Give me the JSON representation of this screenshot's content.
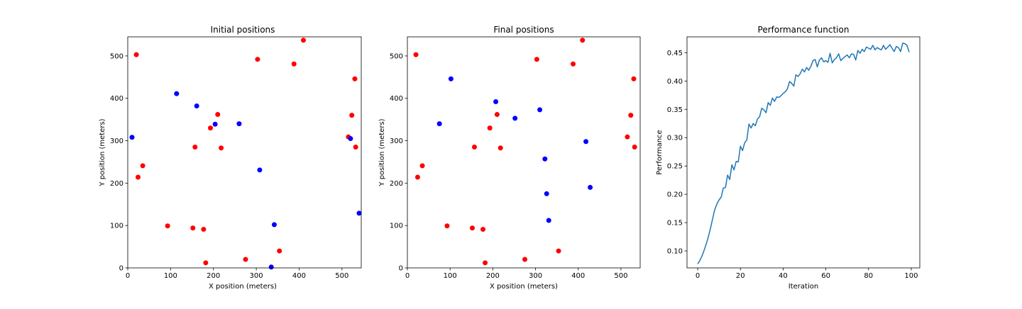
{
  "colors": {
    "red": "#ff0000",
    "blue": "#0000ff",
    "line": "#1f77b4"
  },
  "chart_data": [
    {
      "type": "scatter",
      "title": "Initial positions",
      "xlabel": "X position (meters)",
      "ylabel": "Y position (meters)",
      "xlim": [
        0,
        545
      ],
      "ylim": [
        0,
        545
      ],
      "xticks": [
        0,
        100,
        200,
        300,
        400,
        500
      ],
      "yticks": [
        0,
        100,
        200,
        300,
        400,
        500
      ],
      "grid": false,
      "series": [
        {
          "color": "red",
          "points": [
            [
              20,
              503
            ],
            [
              410,
              537
            ],
            [
              303,
              492
            ],
            [
              388,
              481
            ],
            [
              530,
              446
            ],
            [
              210,
              362
            ],
            [
              523,
              360
            ],
            [
              193,
              330
            ],
            [
              515,
              309
            ],
            [
              157,
              285
            ],
            [
              218,
              283
            ],
            [
              532,
              285
            ],
            [
              35,
              241
            ],
            [
              24,
              214
            ],
            [
              93,
              99
            ],
            [
              152,
              94
            ],
            [
              177,
              91
            ],
            [
              275,
              20
            ],
            [
              354,
              40
            ],
            [
              182,
              12
            ]
          ]
        },
        {
          "color": "blue",
          "points": [
            [
              114,
              411
            ],
            [
              161,
              382
            ],
            [
              204,
              339
            ],
            [
              260,
              340
            ],
            [
              10,
              308
            ],
            [
              520,
              305
            ],
            [
              308,
              231
            ],
            [
              540,
              129
            ],
            [
              342,
              102
            ],
            [
              335,
              2
            ]
          ]
        }
      ]
    },
    {
      "type": "scatter",
      "title": "Final positions",
      "xlabel": "X position (meters)",
      "ylabel": "Y position (meters)",
      "xlim": [
        0,
        545
      ],
      "ylim": [
        0,
        545
      ],
      "xticks": [
        0,
        100,
        200,
        300,
        400,
        500
      ],
      "yticks": [
        0,
        100,
        200,
        300,
        400,
        500
      ],
      "grid": false,
      "series": [
        {
          "color": "red",
          "points": [
            [
              20,
              503
            ],
            [
              410,
              537
            ],
            [
              303,
              492
            ],
            [
              388,
              481
            ],
            [
              530,
              446
            ],
            [
              210,
              362
            ],
            [
              523,
              360
            ],
            [
              193,
              330
            ],
            [
              515,
              309
            ],
            [
              157,
              285
            ],
            [
              218,
              283
            ],
            [
              532,
              285
            ],
            [
              35,
              241
            ],
            [
              24,
              214
            ],
            [
              93,
              99
            ],
            [
              152,
              94
            ],
            [
              177,
              91
            ],
            [
              275,
              20
            ],
            [
              354,
              40
            ],
            [
              182,
              12
            ]
          ]
        },
        {
          "color": "blue",
          "points": [
            [
              102,
              446
            ],
            [
              207,
              392
            ],
            [
              310,
              373
            ],
            [
              252,
              353
            ],
            [
              75,
              340
            ],
            [
              418,
              298
            ],
            [
              322,
              257
            ],
            [
              428,
              190
            ],
            [
              326,
              175
            ],
            [
              331,
              112
            ]
          ]
        }
      ]
    },
    {
      "type": "line",
      "title": "Performance function",
      "xlabel": "Iteration",
      "ylabel": "Performance",
      "xlim": [
        -5,
        104
      ],
      "ylim": [
        0.07,
        0.478
      ],
      "xticks": [
        0,
        20,
        40,
        60,
        80,
        100
      ],
      "yticks": [
        0.1,
        0.15,
        0.2,
        0.25,
        0.3,
        0.35,
        0.4,
        0.45
      ],
      "ytick_labels": [
        "0.10",
        "0.15",
        "0.20",
        "0.25",
        "0.30",
        "0.35",
        "0.40",
        "0.45"
      ],
      "grid": false,
      "series": [
        {
          "color": "line",
          "x": [
            0,
            1,
            2,
            3,
            4,
            5,
            6,
            7,
            8,
            9,
            10,
            11,
            12,
            13,
            14,
            15,
            16,
            17,
            18,
            19,
            20,
            21,
            22,
            23,
            24,
            25,
            26,
            27,
            28,
            29,
            30,
            31,
            32,
            33,
            34,
            35,
            36,
            37,
            38,
            39,
            40,
            41,
            42,
            43,
            44,
            45,
            46,
            47,
            48,
            49,
            50,
            51,
            52,
            53,
            54,
            55,
            56,
            57,
            58,
            59,
            60,
            61,
            62,
            63,
            64,
            65,
            66,
            67,
            68,
            69,
            70,
            71,
            72,
            73,
            74,
            75,
            76,
            77,
            78,
            79,
            80,
            81,
            82,
            83,
            84,
            85,
            86,
            87,
            88,
            89,
            90,
            91,
            92,
            93,
            94,
            95,
            96,
            97,
            98,
            99
          ],
          "y": [
            0.077,
            0.083,
            0.091,
            0.101,
            0.112,
            0.125,
            0.14,
            0.157,
            0.173,
            0.183,
            0.19,
            0.195,
            0.211,
            0.212,
            0.234,
            0.226,
            0.252,
            0.243,
            0.258,
            0.257,
            0.285,
            0.277,
            0.291,
            0.296,
            0.324,
            0.317,
            0.325,
            0.321,
            0.333,
            0.337,
            0.352,
            0.349,
            0.344,
            0.362,
            0.357,
            0.37,
            0.364,
            0.372,
            0.371,
            0.374,
            0.378,
            0.381,
            0.386,
            0.399,
            0.396,
            0.391,
            0.411,
            0.408,
            0.413,
            0.421,
            0.416,
            0.424,
            0.419,
            0.426,
            0.436,
            0.438,
            0.425,
            0.437,
            0.441,
            0.434,
            0.436,
            0.433,
            0.449,
            0.432,
            0.438,
            0.441,
            0.448,
            0.436,
            0.44,
            0.443,
            0.446,
            0.441,
            0.448,
            0.447,
            0.437,
            0.454,
            0.449,
            0.456,
            0.452,
            0.46,
            0.458,
            0.456,
            0.463,
            0.455,
            0.459,
            0.457,
            0.455,
            0.463,
            0.456,
            0.46,
            0.464,
            0.458,
            0.452,
            0.461,
            0.459,
            0.452,
            0.467,
            0.466,
            0.463,
            0.451
          ]
        }
      ]
    }
  ]
}
